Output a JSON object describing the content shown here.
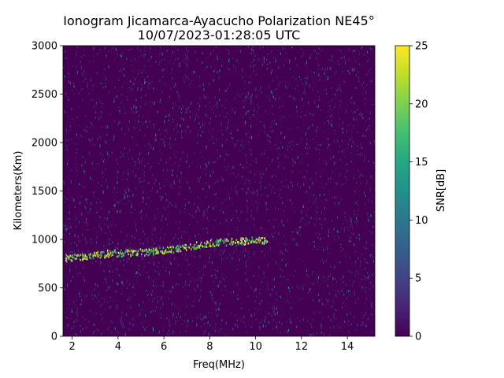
{
  "chart_data": {
    "type": "heatmap",
    "title": "Ionogram Jicamarca-Ayacucho Polarization NE45°",
    "subtitle": "10/07/2023-01:28:05 UTC",
    "xlabel": "Freq(MHz)",
    "ylabel": "Kilometers(Km)",
    "xlim": [
      1.6,
      15.2
    ],
    "ylim": [
      0,
      3000
    ],
    "x_ticks": [
      2,
      4,
      6,
      8,
      10,
      12,
      14
    ],
    "y_ticks": [
      0,
      500,
      1000,
      1500,
      2000,
      2500,
      3000
    ],
    "colormap": "viridis",
    "colorbar": {
      "label": "SNR[dB]",
      "range": [
        0,
        25
      ],
      "ticks": [
        0,
        5,
        10,
        15,
        20,
        25
      ]
    },
    "features": [
      {
        "name": "echo trace",
        "points": [
          [
            1.7,
            810
          ],
          [
            2.5,
            830
          ],
          [
            3.5,
            860
          ],
          [
            4.5,
            870
          ],
          [
            5.5,
            880
          ],
          [
            6.5,
            910
          ],
          [
            7.5,
            950
          ],
          [
            8.5,
            980
          ],
          [
            9.5,
            990
          ],
          [
            10.5,
            1000
          ]
        ],
        "snr_db": 22
      }
    ]
  }
}
